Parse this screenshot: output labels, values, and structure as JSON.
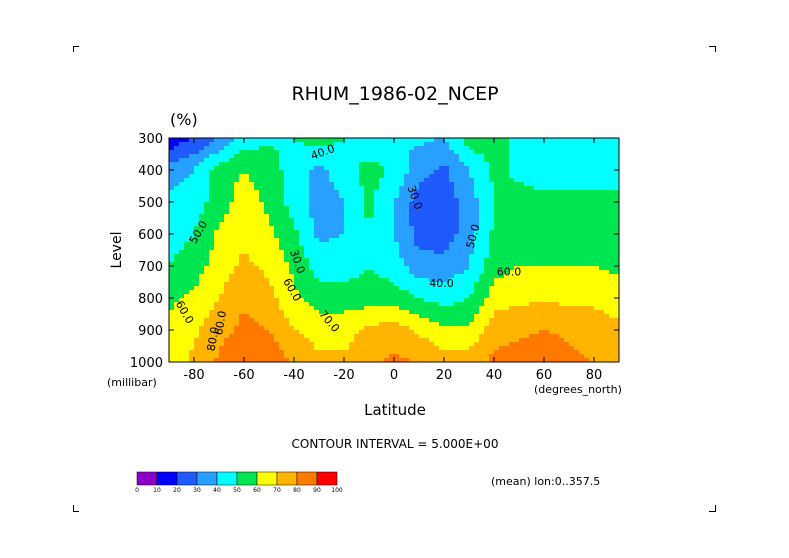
{
  "chart_data": {
    "type": "contour",
    "title": "RHUM_1986-02_NCEP",
    "units": "(%)",
    "ylabel": "Level",
    "y_units": "(millibar)",
    "xlabel": "Latitude",
    "x_units": "(degrees_north)",
    "xlim": [
      -90,
      90
    ],
    "ylim": [
      1000,
      300
    ],
    "x_ticks": [
      "-80",
      "-60",
      "-40",
      "-20",
      "0",
      "20",
      "40",
      "60",
      "80"
    ],
    "x_tick_values": [
      -80,
      -60,
      -40,
      -20,
      0,
      20,
      40,
      60,
      80
    ],
    "y_ticks": [
      "300",
      "400",
      "500",
      "600",
      "700",
      "800",
      "900",
      "1000"
    ],
    "y_tick_values": [
      300,
      400,
      500,
      600,
      700,
      800,
      900,
      1000
    ],
    "contour_interval": "CONTOUR INTERVAL = 5.000E+00",
    "footer_note": "(mean) lon:0..357.5",
    "x": [
      -90,
      -80,
      -70,
      -60,
      -50,
      -40,
      -30,
      -20,
      -10,
      0,
      10,
      20,
      30,
      40,
      50,
      60,
      70,
      80,
      90
    ],
    "levels": [
      300,
      400,
      500,
      600,
      700,
      800,
      900,
      1000
    ],
    "values": [
      [
        12,
        20,
        30,
        45,
        48,
        50,
        55,
        50,
        40,
        40,
        42,
        40,
        55,
        55,
        45,
        42,
        43,
        45,
        45
      ],
      [
        35,
        40,
        55,
        60,
        55,
        45,
        38,
        45,
        55,
        48,
        33,
        28,
        40,
        52,
        48,
        45,
        46,
        46,
        46
      ],
      [
        43,
        45,
        55,
        65,
        58,
        45,
        35,
        40,
        52,
        40,
        25,
        24,
        35,
        50,
        53,
        53,
        53,
        53,
        53
      ],
      [
        46,
        50,
        62,
        68,
        62,
        52,
        38,
        40,
        50,
        40,
        26,
        25,
        35,
        52,
        55,
        55,
        55,
        55,
        55
      ],
      [
        50,
        55,
        65,
        72,
        68,
        58,
        45,
        45,
        50,
        45,
        34,
        33,
        40,
        56,
        60,
        60,
        60,
        60,
        58
      ],
      [
        58,
        62,
        70,
        78,
        73,
        62,
        55,
        55,
        55,
        55,
        50,
        46,
        50,
        65,
        68,
        68,
        68,
        68,
        65
      ],
      [
        62,
        68,
        76,
        83,
        80,
        70,
        66,
        66,
        72,
        75,
        68,
        62,
        62,
        76,
        78,
        80,
        78,
        75,
        72
      ],
      [
        66,
        72,
        82,
        90,
        87,
        78,
        72,
        72,
        78,
        82,
        80,
        75,
        75,
        82,
        85,
        86,
        83,
        80,
        75
      ]
    ],
    "contour_labels": [
      "40.0",
      "30.0",
      "50.0",
      "50.0",
      "30.0",
      "60.0",
      "40.0",
      "60.0",
      "60.0",
      "70.0",
      "60.0",
      "80.0"
    ],
    "colorbar": {
      "ticks": [
        "0",
        "10",
        "20",
        "30",
        "40",
        "50",
        "60",
        "70",
        "80",
        "90",
        "100"
      ],
      "colors": [
        "#8a00c8",
        "#0000ff",
        "#1f5aff",
        "#28a0ff",
        "#00ffff",
        "#00e650",
        "#ffff00",
        "#ffb400",
        "#ff7800",
        "#ff0000"
      ]
    }
  }
}
